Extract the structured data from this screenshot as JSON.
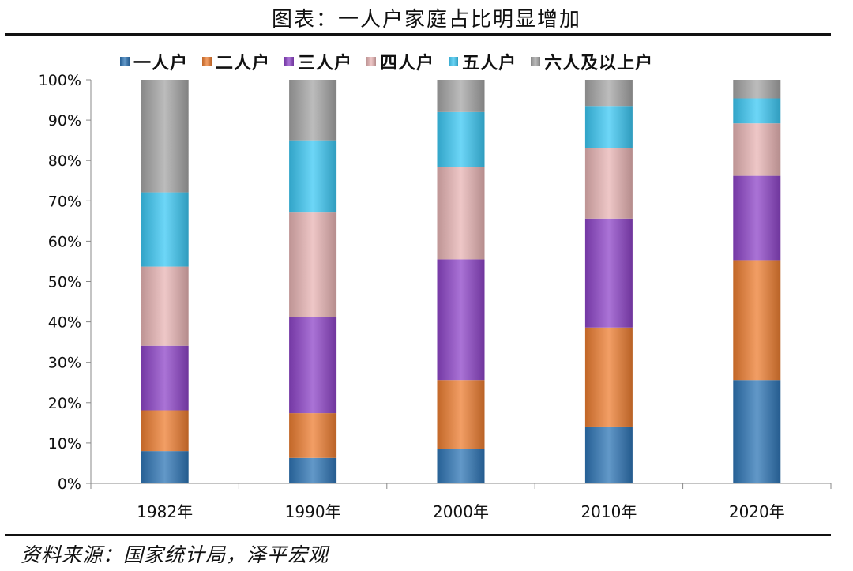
{
  "title": "图表：一人户家庭占比明显增加",
  "source": "资料来源：国家统计局，泽平宏观",
  "chart_data": {
    "type": "bar",
    "stacked": true,
    "categories": [
      "1982年",
      "1990年",
      "2000年",
      "2010年",
      "2020年"
    ],
    "series": [
      {
        "name": "一人户",
        "color": "#2E75B6",
        "values": [
          8.0,
          6.3,
          8.6,
          13.9,
          25.6
        ]
      },
      {
        "name": "二人户",
        "color": "#ED7D31",
        "values": [
          10.1,
          11.1,
          17.0,
          24.7,
          29.7
        ]
      },
      {
        "name": "三人户",
        "color": "#8E44C8",
        "values": [
          16.0,
          23.8,
          29.9,
          27.0,
          20.9
        ]
      },
      {
        "name": "四人户",
        "color": "#E8B4B4",
        "values": [
          19.6,
          25.9,
          22.9,
          17.5,
          13.0
        ]
      },
      {
        "name": "五人户",
        "color": "#3CC8F4",
        "values": [
          18.4,
          17.9,
          13.6,
          10.4,
          6.2
        ]
      },
      {
        "name": "六人及以上户",
        "color": "#A6A6A6",
        "values": [
          27.9,
          15.0,
          8.0,
          6.5,
          4.6
        ]
      }
    ],
    "y_ticks": [
      "0%",
      "10%",
      "20%",
      "30%",
      "40%",
      "50%",
      "60%",
      "70%",
      "80%",
      "90%",
      "100%"
    ],
    "ylim": [
      0,
      100
    ],
    "legend_position": "top",
    "grid": false
  }
}
